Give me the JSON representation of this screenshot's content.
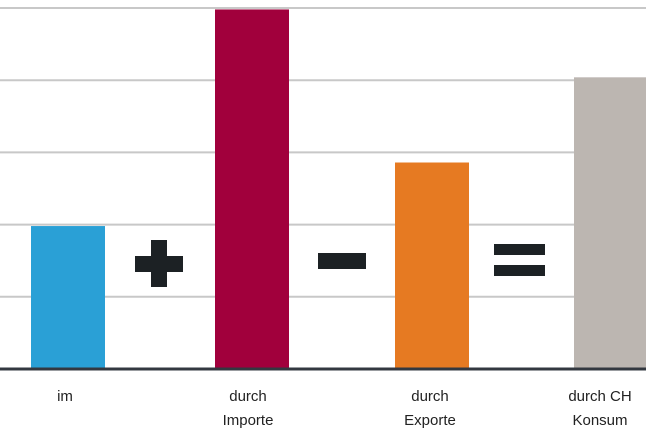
{
  "chart_data": {
    "type": "bar",
    "title": "",
    "xlabel": "",
    "ylabel": "",
    "grid": true,
    "ylim": [
      0,
      5
    ],
    "categories": [
      [
        "im"
      ],
      [
        "durch",
        "Importe"
      ],
      [
        "durch",
        "Exporte"
      ],
      [
        "durch CH",
        "Konsum"
      ]
    ],
    "values": [
      1.98,
      4.98,
      2.86,
      4.04
    ],
    "colors": [
      "#2aa0d6",
      "#a1003c",
      "#e67a22",
      "#bcb6b1"
    ],
    "operators": [
      "plus",
      "minus",
      "equals"
    ]
  },
  "colors": {
    "grid": "#c8c8c8",
    "axis": "#333840",
    "operator": "#1c2124",
    "label": "#222222"
  }
}
